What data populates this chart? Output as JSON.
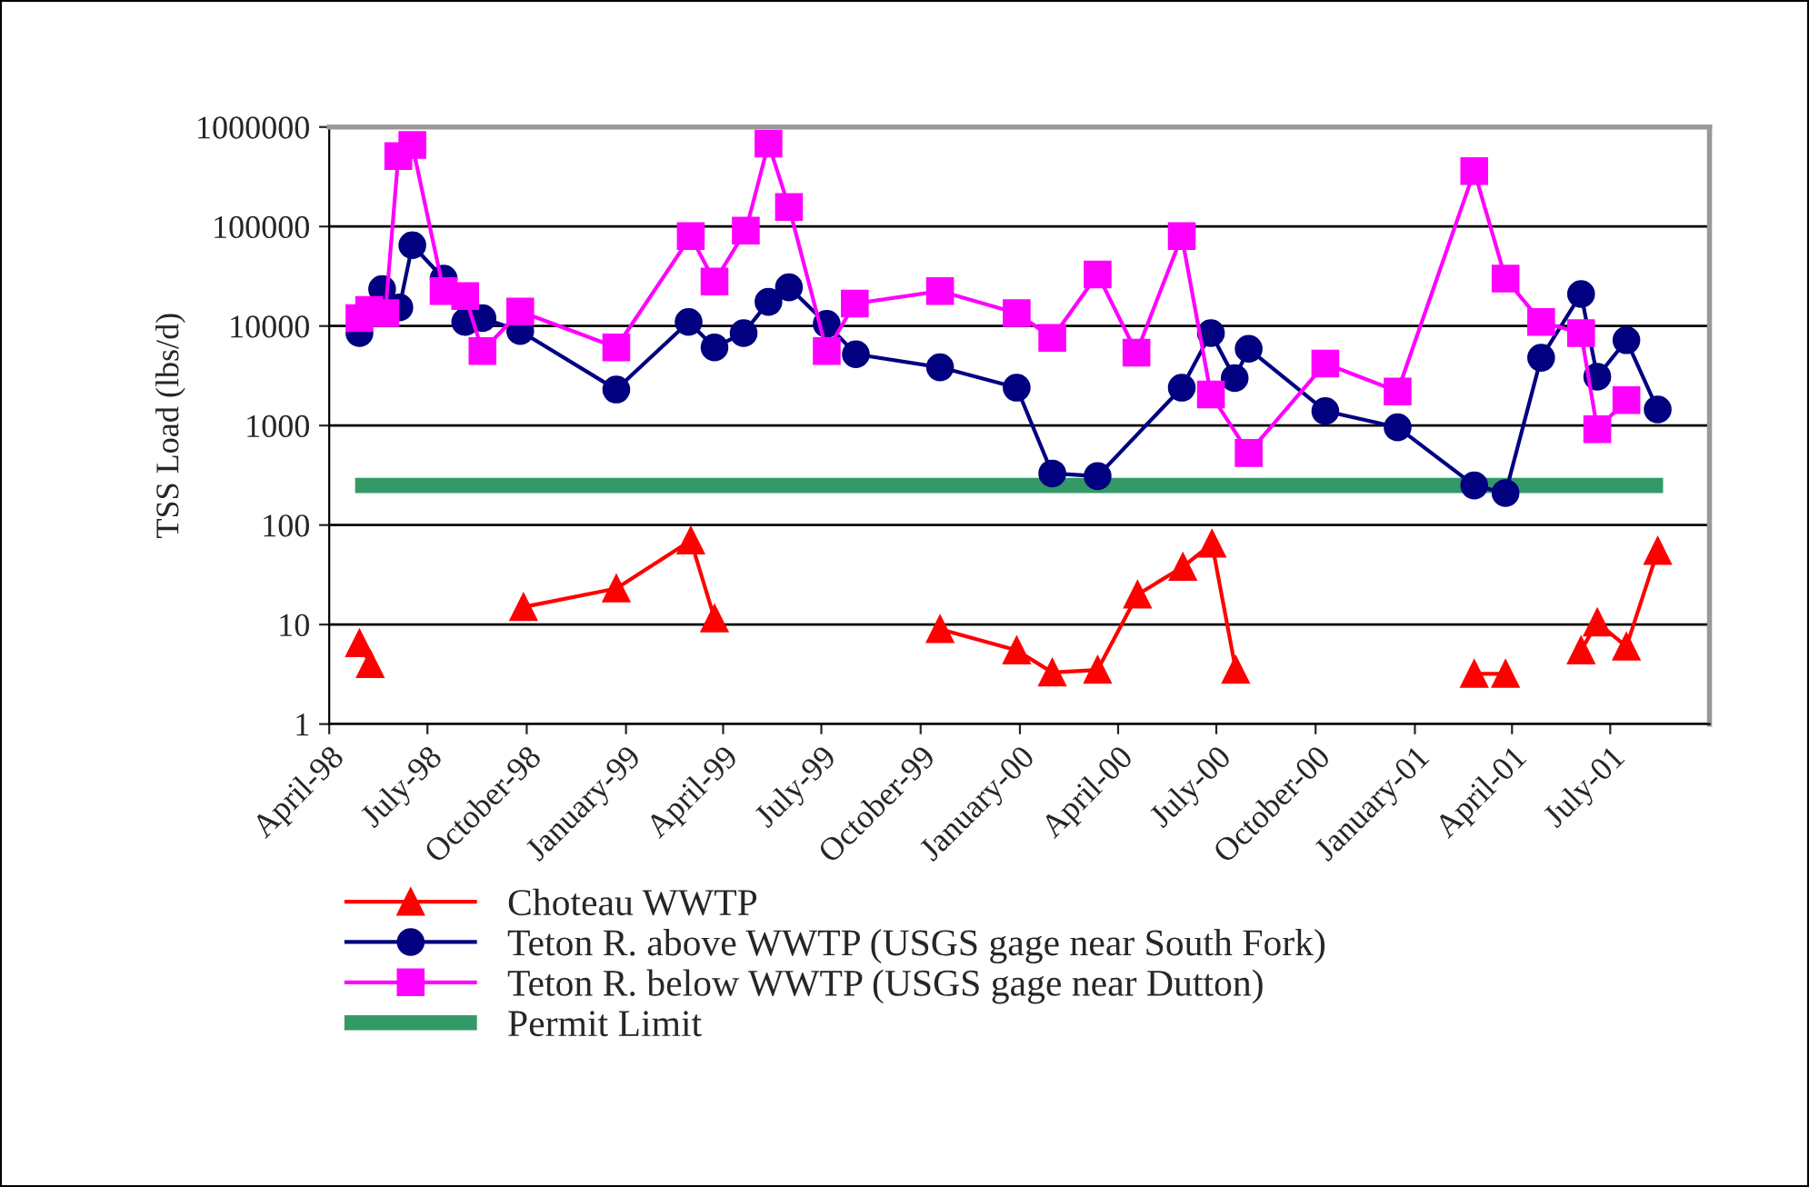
{
  "chart_data": {
    "type": "line",
    "ylabel": "TSS Load (lbs/d)",
    "log": true,
    "ylim": [
      1,
      1000000
    ],
    "yticks": [
      1,
      10,
      100,
      1000,
      10000,
      100000,
      1000000
    ],
    "xlim": [
      "1998-04-01",
      "2001-10-01"
    ],
    "xticks": [
      {
        "value": "1998-04-01",
        "label": "April-98"
      },
      {
        "value": "1998-07-01",
        "label": "July-98"
      },
      {
        "value": "1998-10-01",
        "label": "October-98"
      },
      {
        "value": "1999-01-01",
        "label": "January-99"
      },
      {
        "value": "1999-04-01",
        "label": "April-99"
      },
      {
        "value": "1999-07-01",
        "label": "July-99"
      },
      {
        "value": "1999-10-01",
        "label": "October-99"
      },
      {
        "value": "2000-01-01",
        "label": "January-00"
      },
      {
        "value": "2000-04-01",
        "label": "April-00"
      },
      {
        "value": "2000-07-01",
        "label": "July-00"
      },
      {
        "value": "2000-10-01",
        "label": "October-00"
      },
      {
        "value": "2001-01-01",
        "label": "January-01"
      },
      {
        "value": "2001-04-01",
        "label": "April-01"
      },
      {
        "value": "2001-07-01",
        "label": "July-01"
      }
    ],
    "grid": "y",
    "legend": "bottom",
    "series": [
      {
        "name": "Choteau WWTP",
        "color": "#ff0000",
        "marker": "triangle",
        "x": [
          "1998-04-29",
          "1998-05-09",
          "1998-05-20",
          "1998-09-28",
          "1998-12-23",
          "1999-03-02",
          "1999-03-24",
          "1999-04-20",
          "1999-10-19",
          "1999-12-29",
          "2000-01-31",
          "2000-03-13",
          "2000-04-19",
          "2000-05-31",
          "2000-06-27",
          "2000-07-19",
          "2000-07-31",
          "2001-02-25",
          "2001-03-26",
          "2001-04-28",
          "2001-06-04",
          "2001-06-19",
          "2001-07-16",
          "2001-08-14"
        ],
        "values": [
          6.5,
          4,
          null,
          15,
          23,
          70,
          11.5,
          null,
          9,
          5.5,
          3.3,
          3.5,
          20,
          38,
          65,
          3.5,
          null,
          3.2,
          3.2,
          null,
          5.5,
          10.5,
          6,
          55
        ]
      },
      {
        "name": "Teton R. above WWTP (USGS gage near South Fork)",
        "color": "#000080",
        "marker": "circle",
        "x": [
          "1998-04-29",
          "1998-05-20",
          "1998-06-05",
          "1998-06-17",
          "1998-07-16",
          "1998-08-05",
          "1998-08-21",
          "1998-09-25",
          "1998-12-23",
          "1999-02-28",
          "1999-03-24",
          "1999-04-20",
          "1999-05-13",
          "1999-06-01",
          "1999-07-06",
          "1999-08-02",
          "1999-10-19",
          "1999-12-29",
          "2000-01-31",
          "2000-03-13",
          "2000-05-30",
          "2000-06-26",
          "2000-07-18",
          "2000-07-31",
          "2000-10-10",
          "2000-12-16",
          "2001-02-25",
          "2001-03-26",
          "2001-04-28",
          "2001-06-04",
          "2001-06-19",
          "2001-07-16",
          "2001-08-14"
        ],
        "values": [
          8500,
          23500,
          15400,
          65000,
          30000,
          11000,
          12000,
          8900,
          2300,
          11000,
          6100,
          8500,
          17500,
          24500,
          10500,
          5200,
          3850,
          2400,
          330,
          310,
          2400,
          8500,
          3000,
          5900,
          1400,
          960,
          250,
          210,
          4800,
          21000,
          3100,
          7200,
          1450
        ]
      },
      {
        "name": "Teton R. below WWTP (USGS gage near Dutton)",
        "color": "#ff00ff",
        "marker": "square",
        "x": [
          "1998-04-29",
          "1998-05-08",
          "1998-05-23",
          "1998-06-04",
          "1998-06-17",
          "1998-07-16",
          "1998-08-05",
          "1998-08-21",
          "1998-09-25",
          "1998-12-23",
          "1999-03-02",
          "1999-03-24",
          "1999-04-22",
          "1999-05-13",
          "1999-06-01",
          "1999-07-06",
          "1999-08-01",
          "1999-10-19",
          "1999-12-29",
          "2000-01-31",
          "2000-03-13",
          "2000-04-18",
          "2000-05-30",
          "2000-06-26",
          "2000-07-31",
          "2000-10-10",
          "2000-12-16",
          "2001-02-25",
          "2001-03-26",
          "2001-04-28",
          "2001-06-04",
          "2001-06-19",
          "2001-07-16"
        ],
        "values": [
          12000,
          14500,
          13500,
          510000,
          660000,
          22500,
          20000,
          5600,
          14000,
          6100,
          80000,
          28000,
          91000,
          680000,
          157000,
          5600,
          16800,
          22500,
          13500,
          7600,
          33000,
          5400,
          80000,
          2050,
          530,
          4200,
          2200,
          360000,
          30000,
          11000,
          8500,
          920,
          1800
        ]
      },
      {
        "name": "Permit Limit",
        "color": "#339966",
        "marker": "none",
        "x": [
          "1998-04-25",
          "2001-08-19"
        ],
        "values": [
          250,
          250
        ]
      }
    ]
  }
}
